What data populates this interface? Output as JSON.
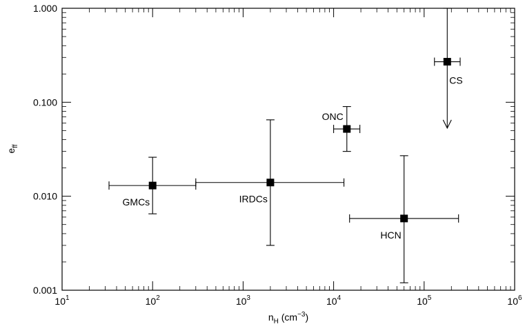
{
  "chart_data": {
    "type": "scatter",
    "x_scale": "log",
    "y_scale": "log",
    "xlim": [
      10,
      1000000
    ],
    "ylim": [
      0.001,
      1.0
    ],
    "xlabel": {
      "base": "n",
      "sub": "H",
      "unit": "(cm",
      "unit_sup": "−3",
      "unit_close": ")"
    },
    "ylabel": {
      "base": "e",
      "sub": "ff"
    },
    "x_ticks": [
      {
        "value": 10,
        "base": "10",
        "exp": "1"
      },
      {
        "value": 100,
        "base": "10",
        "exp": "2"
      },
      {
        "value": 1000,
        "base": "10",
        "exp": "3"
      },
      {
        "value": 10000,
        "base": "10",
        "exp": "4"
      },
      {
        "value": 100000,
        "base": "10",
        "exp": "5"
      },
      {
        "value": 1000000,
        "base": "10",
        "exp": "6"
      }
    ],
    "y_ticks": [
      {
        "value": 0.001,
        "label": "0.001"
      },
      {
        "value": 0.01,
        "label": "0.010"
      },
      {
        "value": 0.1,
        "label": "0.100"
      },
      {
        "value": 1.0,
        "label": "1.000"
      }
    ],
    "points": [
      {
        "label": "GMCs",
        "x": 100,
        "y": 0.013,
        "x_lo": 33,
        "x_hi": 300,
        "y_lo": 0.0065,
        "y_hi": 0.026,
        "label_pos": "below-left"
      },
      {
        "label": "IRDCs",
        "x": 2000,
        "y": 0.014,
        "x_lo": 300,
        "x_hi": 13000,
        "y_lo": 0.003,
        "y_hi": 0.065,
        "label_pos": "below-left"
      },
      {
        "label": "ONC",
        "x": 14000,
        "y": 0.052,
        "x_lo": 10000,
        "x_hi": 19500,
        "y_lo": 0.03,
        "y_hi": 0.09,
        "label_pos": "above-left"
      },
      {
        "label": "HCN",
        "x": 60000,
        "y": 0.0058,
        "x_lo": 15000,
        "x_hi": 240000,
        "y_lo": 0.0012,
        "y_hi": 0.027,
        "label_pos": "below-left"
      },
      {
        "label": "CS",
        "x": 180000,
        "y": 0.27,
        "x_lo": 130000,
        "x_hi": 250000,
        "y_lo": 0.053,
        "y_hi": 1.0,
        "upper_limit": true,
        "label_pos": "below-right"
      }
    ]
  }
}
